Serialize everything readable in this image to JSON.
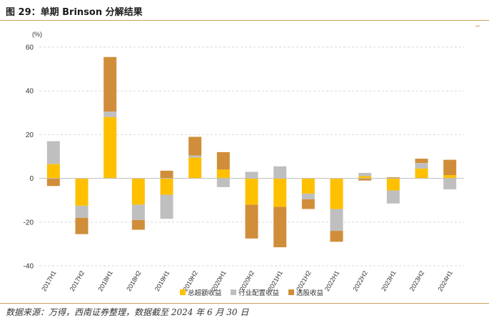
{
  "header": {
    "title": "图 29：单期 Brinson 分解结果"
  },
  "footer": {
    "source": "数据来源：万得，西南证券整理，数据截至 2024 年 6 月 30 日"
  },
  "colors": {
    "total": "#FFC000",
    "industry": "#BFBFBF",
    "selection": "#D08E3A",
    "rule": "#c8a35a"
  },
  "chart_data": {
    "type": "bar",
    "stacked": true,
    "ylabel": "(%)",
    "ylim": [
      -40,
      60
    ],
    "yticks": [
      60,
      40,
      20,
      0,
      -20,
      -40
    ],
    "grid": true,
    "legend_position": "bottom",
    "categories": [
      "2017H1",
      "2017H2",
      "2018H1",
      "2018H2",
      "2019H1",
      "2019H2",
      "2020H1",
      "2020H2",
      "2021H1",
      "2021H2",
      "2022H1",
      "2022H2",
      "2023H1",
      "2023H2",
      "2024H1"
    ],
    "series": [
      {
        "name": "总超额收益",
        "values": [
          6.5,
          -12.5,
          28,
          -12,
          -7.5,
          9.5,
          4,
          -12,
          -13,
          -7,
          -14,
          1,
          -5.5,
          4.5,
          1.5
        ]
      },
      {
        "name": "行业配置收益",
        "values": [
          10.5,
          -5.5,
          2.5,
          -7,
          -11,
          1,
          -4,
          3,
          5.5,
          -2.5,
          -10,
          1.5,
          -6,
          2.5,
          -5
        ]
      },
      {
        "name": "选股收益",
        "values": [
          -3.5,
          -7.5,
          25,
          -4.5,
          3.5,
          8.5,
          8,
          -15.5,
          -18.5,
          -4.5,
          -5,
          -1,
          0.5,
          2,
          7
        ]
      }
    ]
  }
}
